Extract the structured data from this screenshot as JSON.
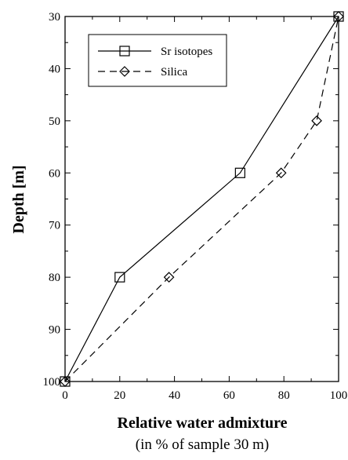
{
  "chart_data": {
    "type": "line",
    "xlabel": "Relative water admixture",
    "xlabel_sub": "(in % of sample 30 m)",
    "ylabel": "Depth [m]",
    "xlim": [
      0,
      100
    ],
    "ylim": [
      100,
      30
    ],
    "x_ticks": [
      0,
      20,
      40,
      60,
      80,
      100
    ],
    "x_tick_labels": [
      "0",
      "20",
      "40",
      "60",
      "80",
      "100"
    ],
    "y_ticks": [
      30,
      40,
      50,
      60,
      70,
      80,
      90,
      100
    ],
    "y_tick_labels": [
      "30",
      "40",
      "50",
      "60",
      "70",
      "80",
      "90",
      "100"
    ],
    "grid": false,
    "legend_position": "top-left",
    "series": [
      {
        "name": "Sr isotopes",
        "line_style": "solid",
        "marker": "square",
        "color": "#000000",
        "points": [
          {
            "x": 0,
            "y": 100
          },
          {
            "x": 20,
            "y": 80
          },
          {
            "x": 64,
            "y": 60
          },
          {
            "x": 100,
            "y": 30
          }
        ]
      },
      {
        "name": "Silica",
        "line_style": "dashed",
        "marker": "diamond",
        "color": "#000000",
        "points": [
          {
            "x": 0,
            "y": 100
          },
          {
            "x": 38,
            "y": 80
          },
          {
            "x": 79,
            "y": 60
          },
          {
            "x": 92,
            "y": 50
          },
          {
            "x": 100,
            "y": 30
          }
        ]
      }
    ]
  }
}
